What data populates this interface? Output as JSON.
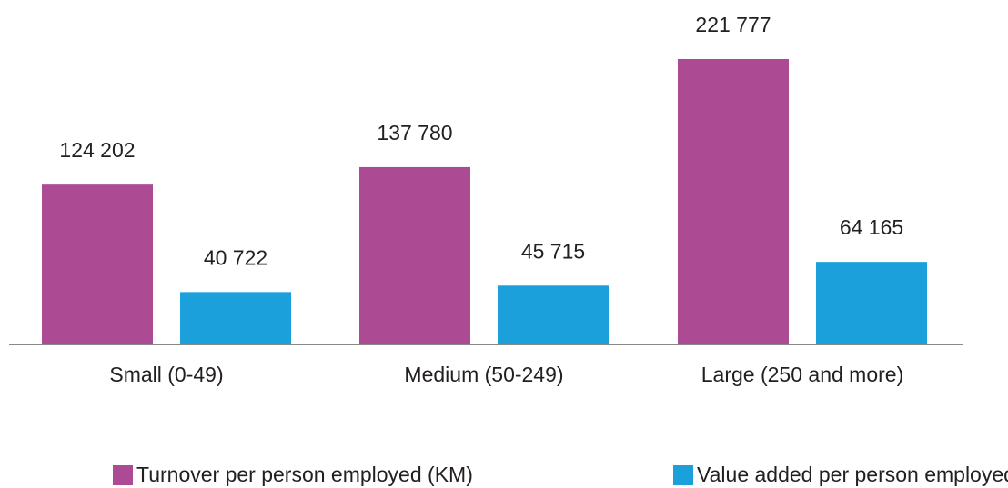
{
  "chart_data": {
    "type": "bar",
    "categories": [
      "Small (0-49)",
      "Medium (50-249)",
      "Large (250 and more)"
    ],
    "series": [
      {
        "name": "Turnover per person employed (KM)",
        "color": "#ac4a94",
        "values": [
          124202,
          137780,
          221777
        ],
        "value_labels": [
          "124 202",
          "137 780",
          "221 777"
        ]
      },
      {
        "name": "Value added per person employed (KM)",
        "color": "#1ba0db",
        "values": [
          40722,
          45715,
          64165
        ],
        "value_labels": [
          "40 722",
          "45 715",
          "64 165"
        ]
      }
    ]
  }
}
